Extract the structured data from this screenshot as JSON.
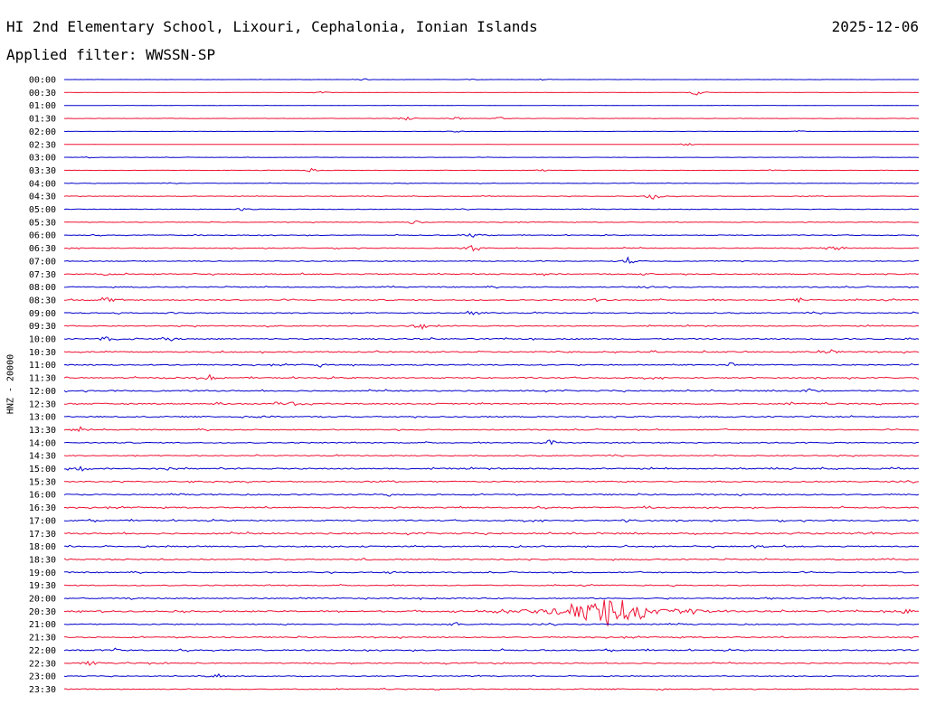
{
  "header": {
    "title": "HI 2nd Elementary School, Lixouri, Cephalonia, Ionian Islands",
    "date": "2025-12-06",
    "filter": "Applied filter: WWSSN-SP",
    "channel": "HNZ - 20000"
  },
  "colors": {
    "even": "#0000cc",
    "odd": "#ee1133"
  },
  "chart_data": {
    "type": "line",
    "title": "HI 2nd Elementary School, Lixouri, Cephalonia, Ionian Islands",
    "ylabel": "HNZ - 20000",
    "series": [
      {
        "name": "00:00",
        "noise": 0.1,
        "events": [
          [
            0.35,
            1.2
          ],
          [
            0.48,
            0.8
          ],
          [
            0.56,
            1.0
          ]
        ]
      },
      {
        "name": "00:30",
        "noise": 0.1,
        "events": [
          [
            0.3,
            1.2
          ],
          [
            0.74,
            3.0
          ]
        ]
      },
      {
        "name": "01:00",
        "noise": 0.1,
        "events": []
      },
      {
        "name": "01:30",
        "noise": 0.15,
        "events": [
          [
            0.4,
            2.5
          ],
          [
            0.46,
            2.0
          ],
          [
            0.51,
            1.5
          ]
        ]
      },
      {
        "name": "02:00",
        "noise": 0.1,
        "events": [
          [
            0.46,
            1.5
          ],
          [
            0.86,
            1.2
          ]
        ]
      },
      {
        "name": "02:30",
        "noise": 0.1,
        "events": [
          [
            0.73,
            2.0
          ]
        ]
      },
      {
        "name": "03:00",
        "noise": 0.15,
        "events": [
          [
            0.03,
            1.0
          ]
        ]
      },
      {
        "name": "03:30",
        "noise": 0.15,
        "events": [
          [
            0.29,
            2.5
          ],
          [
            0.56,
            1.5
          ],
          [
            0.83,
            1.0
          ]
        ]
      },
      {
        "name": "04:00",
        "noise": 0.25,
        "events": []
      },
      {
        "name": "04:30",
        "noise": 0.3,
        "events": [
          [
            0.69,
            4.0
          ]
        ]
      },
      {
        "name": "05:00",
        "noise": 0.3,
        "events": [
          [
            0.21,
            2.0
          ]
        ]
      },
      {
        "name": "05:30",
        "noise": 0.3,
        "events": [
          [
            0.41,
            3.0
          ]
        ]
      },
      {
        "name": "06:00",
        "noise": 0.35,
        "events": [
          [
            0.15,
            2.0
          ],
          [
            0.48,
            3.5
          ]
        ]
      },
      {
        "name": "06:30",
        "noise": 0.4,
        "events": [
          [
            0.48,
            4.0
          ],
          [
            0.9,
            4.5
          ]
        ]
      },
      {
        "name": "07:00",
        "noise": 0.4,
        "events": [
          [
            0.66,
            4.0
          ]
        ]
      },
      {
        "name": "07:30",
        "noise": 0.5,
        "events": [
          [
            0.05,
            3.5
          ],
          [
            0.56,
            3.0
          ],
          [
            0.68,
            2.0
          ]
        ]
      },
      {
        "name": "08:00",
        "noise": 0.5,
        "events": [
          [
            0.68,
            2.0
          ]
        ]
      },
      {
        "name": "08:30",
        "noise": 0.55,
        "events": [
          [
            0.05,
            5.0
          ],
          [
            0.62,
            2.0
          ],
          [
            0.86,
            2.5
          ]
        ]
      },
      {
        "name": "09:00",
        "noise": 0.5,
        "events": [
          [
            0.13,
            2.0
          ],
          [
            0.48,
            3.0
          ]
        ]
      },
      {
        "name": "09:30",
        "noise": 0.5,
        "events": [
          [
            0.42,
            4.5
          ]
        ]
      },
      {
        "name": "10:00",
        "noise": 0.6,
        "events": [
          [
            0.05,
            3.5
          ],
          [
            0.13,
            3.0
          ]
        ]
      },
      {
        "name": "10:30",
        "noise": 0.6,
        "events": [
          [
            0.58,
            2.0
          ],
          [
            0.9,
            3.5
          ]
        ]
      },
      {
        "name": "11:00",
        "noise": 0.55,
        "events": [
          [
            0.3,
            2.0
          ],
          [
            0.78,
            3.0
          ]
        ]
      },
      {
        "name": "11:30",
        "noise": 0.6,
        "events": [
          [
            0.0,
            2.5
          ],
          [
            0.17,
            4.0
          ]
        ]
      },
      {
        "name": "12:00",
        "noise": 0.6,
        "events": [
          [
            0.87,
            3.0
          ]
        ]
      },
      {
        "name": "12:30",
        "noise": 0.6,
        "events": [
          [
            0.18,
            2.0
          ],
          [
            0.25,
            4.0
          ],
          [
            0.27,
            3.5
          ],
          [
            0.85,
            2.0
          ]
        ]
      },
      {
        "name": "13:00",
        "noise": 0.6,
        "events": [
          [
            0.23,
            2.0
          ]
        ]
      },
      {
        "name": "13:30",
        "noise": 0.5,
        "events": [
          [
            0.02,
            4.0
          ]
        ]
      },
      {
        "name": "14:00",
        "noise": 0.5,
        "events": [
          [
            0.57,
            5.0
          ]
        ]
      },
      {
        "name": "14:30",
        "noise": 0.5,
        "events": []
      },
      {
        "name": "15:00",
        "noise": 0.6,
        "events": [
          [
            0.02,
            3.0
          ],
          [
            0.12,
            2.0
          ]
        ]
      },
      {
        "name": "15:30",
        "noise": 0.6,
        "events": []
      },
      {
        "name": "16:00",
        "noise": 0.6,
        "events": [
          [
            0.38,
            1.5
          ]
        ]
      },
      {
        "name": "16:30",
        "noise": 0.6,
        "events": [
          [
            0.68,
            2.0
          ]
        ]
      },
      {
        "name": "17:00",
        "noise": 0.6,
        "events": [
          [
            0.66,
            2.0
          ]
        ]
      },
      {
        "name": "17:30",
        "noise": 0.7,
        "events": []
      },
      {
        "name": "18:00",
        "noise": 0.6,
        "events": [
          [
            0.53,
            2.0
          ],
          [
            0.81,
            2.5
          ]
        ]
      },
      {
        "name": "18:30",
        "noise": 0.6,
        "events": [
          [
            0.35,
            1.5
          ]
        ]
      },
      {
        "name": "19:00",
        "noise": 0.5,
        "events": [
          [
            0.38,
            2.0
          ]
        ]
      },
      {
        "name": "19:30",
        "noise": 0.5,
        "events": []
      },
      {
        "name": "20:00",
        "noise": 0.55,
        "events": [
          [
            0.28,
            1.5
          ]
        ]
      },
      {
        "name": "20:30",
        "noise": 0.7,
        "events": [
          [
            0.625,
            14.0
          ],
          [
            0.64,
            10.0
          ],
          [
            0.66,
            6.0
          ],
          [
            0.985,
            3.0
          ]
        ]
      },
      {
        "name": "21:00",
        "noise": 0.55,
        "events": [
          [
            0.46,
            2.5
          ]
        ]
      },
      {
        "name": "21:30",
        "noise": 0.55,
        "events": []
      },
      {
        "name": "22:00",
        "noise": 0.6,
        "events": [
          [
            0.06,
            2.5
          ],
          [
            0.94,
            2.0
          ]
        ]
      },
      {
        "name": "22:30",
        "noise": 0.5,
        "events": [
          [
            0.03,
            3.0
          ],
          [
            0.5,
            1.5
          ]
        ]
      },
      {
        "name": "23:00",
        "noise": 0.4,
        "events": [
          [
            0.18,
            3.0
          ]
        ]
      },
      {
        "name": "23:30",
        "noise": 0.5,
        "events": []
      }
    ]
  }
}
